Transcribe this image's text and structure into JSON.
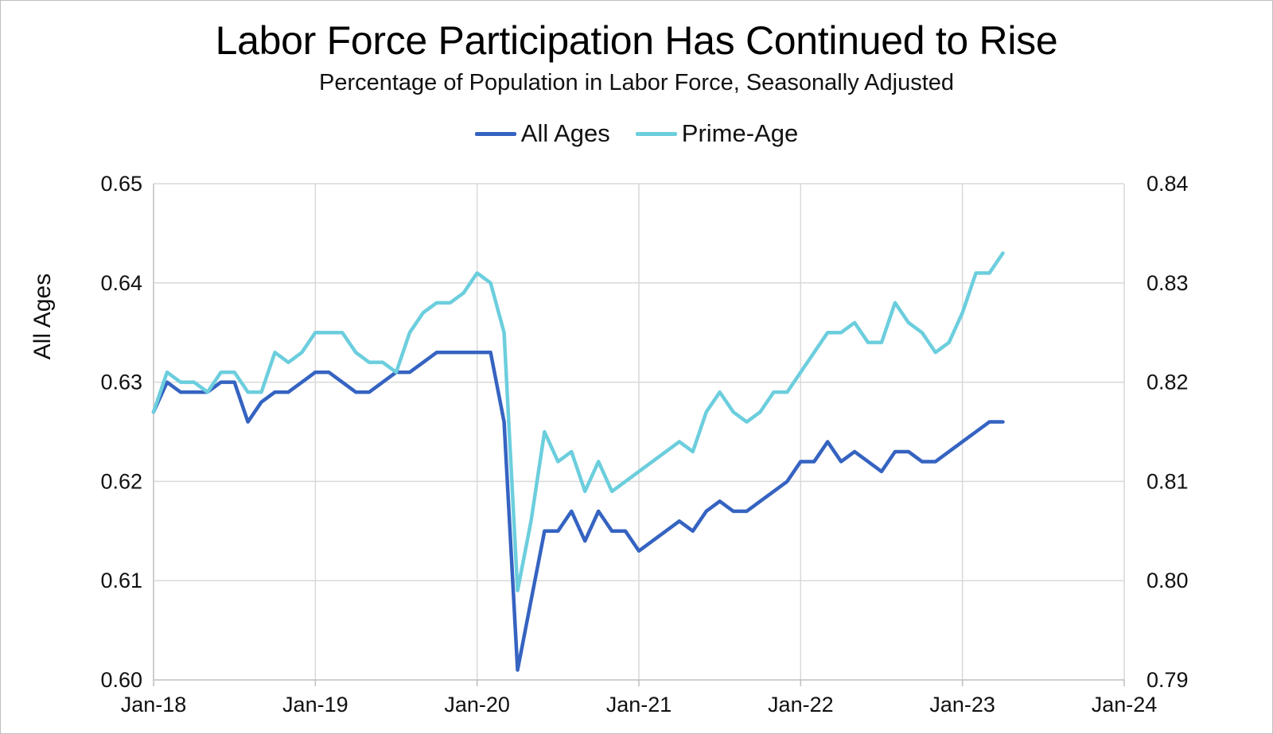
{
  "chart_data": {
    "type": "line",
    "title": "Labor Force Participation Has Continued to Rise",
    "subtitle": "Percentage of Population in Labor Force, Seasonally Adjusted",
    "ylabel": "All Ages",
    "y2label": "",
    "ylim": [
      0.6,
      0.65
    ],
    "y2lim": [
      0.79,
      0.84
    ],
    "yticks": [
      "0.60",
      "0.61",
      "0.62",
      "0.63",
      "0.64",
      "0.65"
    ],
    "y2ticks": [
      "0.79",
      "0.80",
      "0.81",
      "0.82",
      "0.83",
      "0.84"
    ],
    "xticks": [
      "Jan-18",
      "Jan-19",
      "Jan-20",
      "Jan-21",
      "Jan-22",
      "Jan-23",
      "Jan-24"
    ],
    "x_months_total": 72,
    "grid": true,
    "legend_position": "top-center",
    "series": [
      {
        "name": "All Ages",
        "axis": "left",
        "color": "#3563c1",
        "values": [
          0.627,
          0.63,
          0.629,
          0.629,
          0.629,
          0.63,
          0.63,
          0.626,
          0.628,
          0.629,
          0.629,
          0.63,
          0.631,
          0.631,
          0.63,
          0.629,
          0.629,
          0.63,
          0.631,
          0.631,
          0.632,
          0.633,
          0.633,
          0.633,
          0.633,
          0.633,
          0.626,
          0.601,
          0.608,
          0.615,
          0.615,
          0.617,
          0.614,
          0.617,
          0.615,
          0.615,
          0.613,
          0.614,
          0.615,
          0.616,
          0.615,
          0.617,
          0.618,
          0.617,
          0.617,
          0.618,
          0.619,
          0.62,
          0.622,
          0.622,
          0.624,
          0.622,
          0.623,
          0.622,
          0.621,
          0.623,
          0.623,
          0.622,
          0.622,
          0.623,
          0.624,
          0.625,
          0.626,
          0.626
        ]
      },
      {
        "name": "Prime-Age",
        "axis": "right",
        "color": "#6ccedd",
        "values": [
          0.817,
          0.821,
          0.82,
          0.82,
          0.819,
          0.821,
          0.821,
          0.819,
          0.819,
          0.823,
          0.822,
          0.823,
          0.825,
          0.825,
          0.825,
          0.823,
          0.822,
          0.822,
          0.821,
          0.825,
          0.827,
          0.828,
          0.828,
          0.829,
          0.831,
          0.83,
          0.825,
          0.799,
          0.806,
          0.815,
          0.812,
          0.813,
          0.809,
          0.812,
          0.809,
          0.81,
          0.811,
          0.812,
          0.813,
          0.814,
          0.813,
          0.817,
          0.819,
          0.817,
          0.816,
          0.817,
          0.819,
          0.819,
          0.821,
          0.823,
          0.825,
          0.825,
          0.826,
          0.824,
          0.824,
          0.828,
          0.826,
          0.825,
          0.823,
          0.824,
          0.827,
          0.831,
          0.831,
          0.833
        ]
      }
    ]
  }
}
